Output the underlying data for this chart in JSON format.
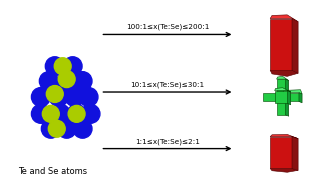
{
  "bg_color": "#ffffff",
  "blue_color": "#1111dd",
  "yellow_color": "#aacc00",
  "label_text": "Te and Se atoms",
  "arrows": [
    {
      "label": "100:1≤x(Te:Se)≤200:1"
    },
    {
      "label": "10:1≤x(Te:Se)≤30:1"
    },
    {
      "label": "1:1≤x(Te:Se)≤2:1"
    }
  ],
  "red_face": "#cc1111",
  "red_side": "#881111",
  "red_top": "#ee3333",
  "green_face": "#22cc44",
  "green_side": "#119933",
  "green_top": "#55ee77",
  "green_dark": "#118833"
}
